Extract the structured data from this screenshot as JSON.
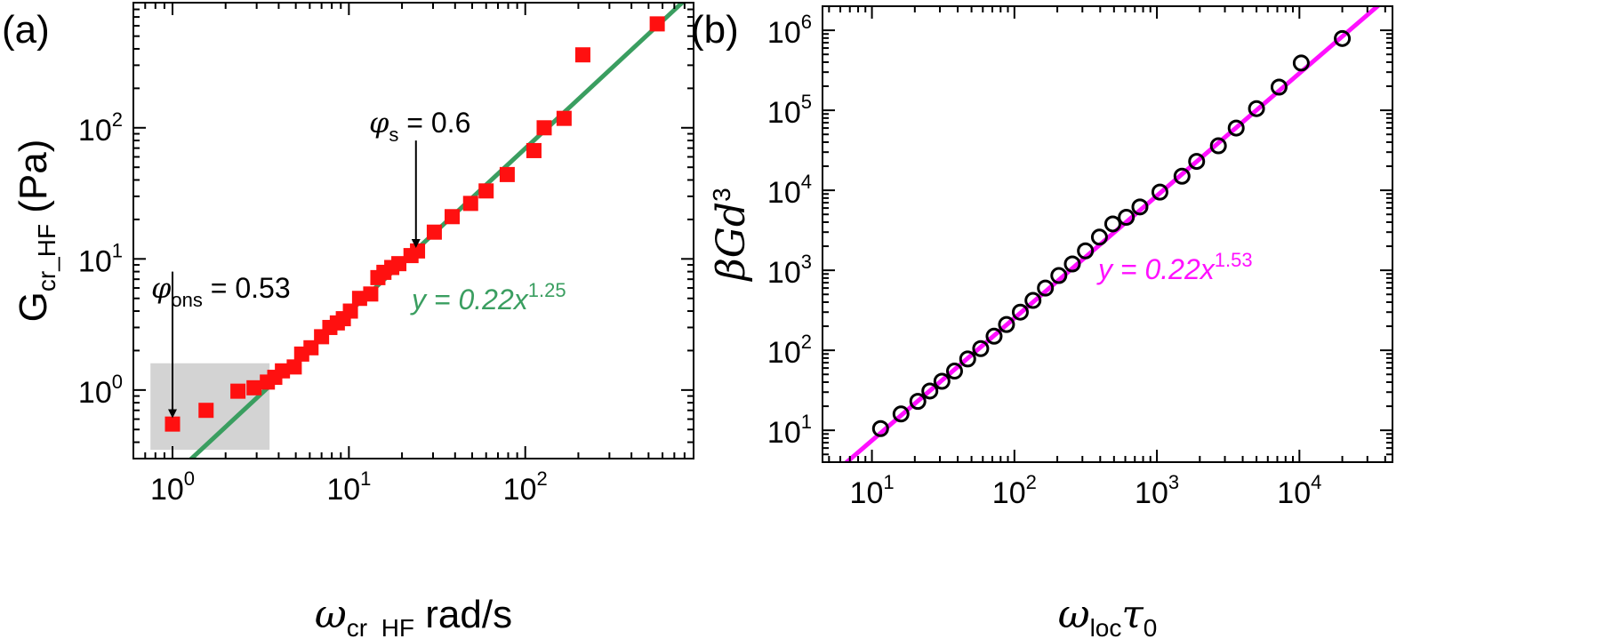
{
  "chart_data": [
    {
      "panel_label": "(a)",
      "type": "scatter",
      "scale": "log-log",
      "xlim": [
        0.6,
        900
      ],
      "ylim": [
        0.3,
        900
      ],
      "x_ticks": [
        {
          "value": 1,
          "base": "10",
          "exp": "0"
        },
        {
          "value": 10,
          "base": "10",
          "exp": "1"
        },
        {
          "value": 100,
          "base": "10",
          "exp": "2"
        }
      ],
      "y_ticks": [
        {
          "value": 1,
          "base": "10",
          "exp": "0"
        },
        {
          "value": 10,
          "base": "10",
          "exp": "1"
        },
        {
          "value": 100,
          "base": "10",
          "exp": "2"
        }
      ],
      "xlabel": {
        "symbol": "ω",
        "sub": "cr_HF",
        "rest": " rad/s"
      },
      "ylabel": {
        "symbol": "G",
        "sub": "cr_HF",
        "rest": " (Pa)"
      },
      "marker": {
        "shape": "square",
        "color": "#ff1010"
      },
      "points": [
        {
          "x": 1.0,
          "y": 0.55
        },
        {
          "x": 1.55,
          "y": 0.7
        },
        {
          "x": 2.35,
          "y": 0.98
        },
        {
          "x": 2.9,
          "y": 1.04
        },
        {
          "x": 3.45,
          "y": 1.15
        },
        {
          "x": 3.8,
          "y": 1.25
        },
        {
          "x": 4.2,
          "y": 1.4
        },
        {
          "x": 4.9,
          "y": 1.5
        },
        {
          "x": 5.4,
          "y": 1.88
        },
        {
          "x": 6.1,
          "y": 2.1
        },
        {
          "x": 7.0,
          "y": 2.55
        },
        {
          "x": 7.8,
          "y": 3.0
        },
        {
          "x": 8.6,
          "y": 3.25
        },
        {
          "x": 9.3,
          "y": 3.5
        },
        {
          "x": 10.2,
          "y": 4.0
        },
        {
          "x": 11.5,
          "y": 5.0
        },
        {
          "x": 13.3,
          "y": 5.4
        },
        {
          "x": 14.6,
          "y": 7.2
        },
        {
          "x": 15.8,
          "y": 7.9
        },
        {
          "x": 17.5,
          "y": 8.6
        },
        {
          "x": 19.2,
          "y": 9.2
        },
        {
          "x": 22.5,
          "y": 10.6
        },
        {
          "x": 24.5,
          "y": 11.5
        },
        {
          "x": 30.5,
          "y": 16.0
        },
        {
          "x": 38.5,
          "y": 21.0
        },
        {
          "x": 49.0,
          "y": 26.5
        },
        {
          "x": 60.0,
          "y": 33.0
        },
        {
          "x": 79.0,
          "y": 44.0
        },
        {
          "x": 112.0,
          "y": 67.0
        },
        {
          "x": 128.0,
          "y": 100.0
        },
        {
          "x": 166.0,
          "y": 118.0
        },
        {
          "x": 212.0,
          "y": 360.0
        },
        {
          "x": 560.0,
          "y": 620.0
        }
      ],
      "fit": {
        "a": 0.22,
        "b": 1.25,
        "color": "#3a9e60",
        "label_prefix": "y = 0.22x",
        "label_exp": "1.25"
      },
      "shaded_region": {
        "x": [
          0.75,
          3.55
        ],
        "y": [
          0.35,
          1.6
        ],
        "color": "#d3d3d3"
      },
      "annotations": [
        {
          "symbol": "φ",
          "sub": "ons",
          "text": " = 0.53",
          "arrow_x": 1.0,
          "arrow_y_from": 8.0,
          "arrow_y_to": 0.63
        },
        {
          "symbol": "φ",
          "sub": "s",
          "text": " = 0.6",
          "arrow_x": 24.0,
          "arrow_y_from": 80.0,
          "arrow_y_to": 12.5
        }
      ]
    },
    {
      "panel_label": "(b)",
      "type": "scatter",
      "scale": "log-log",
      "xlim": [
        4.5,
        45000
      ],
      "ylim": [
        4.0,
        2000000
      ],
      "x_ticks": [
        {
          "value": 10,
          "base": "10",
          "exp": "1"
        },
        {
          "value": 100,
          "base": "10",
          "exp": "2"
        },
        {
          "value": 1000,
          "base": "10",
          "exp": "3"
        },
        {
          "value": 10000,
          "base": "10",
          "exp": "4"
        }
      ],
      "y_ticks": [
        {
          "value": 10,
          "base": "10",
          "exp": "1"
        },
        {
          "value": 100,
          "base": "10",
          "exp": "2"
        },
        {
          "value": 1000,
          "base": "10",
          "exp": "3"
        },
        {
          "value": 10000,
          "base": "10",
          "exp": "4"
        },
        {
          "value": 100000,
          "base": "10",
          "exp": "5"
        },
        {
          "value": 1000000,
          "base": "10",
          "exp": "6"
        }
      ],
      "xlabel": {
        "symbol": "ω",
        "sub": "loc",
        "symbol2": "τ",
        "sub2": "0"
      },
      "ylabel": {
        "symbol": "βGd",
        "sup": "3"
      },
      "marker": {
        "shape": "circle-open",
        "color": "#000000"
      },
      "points": [
        {
          "x": 11.5,
          "y": 10.5
        },
        {
          "x": 16,
          "y": 16
        },
        {
          "x": 21,
          "y": 23
        },
        {
          "x": 25.5,
          "y": 31
        },
        {
          "x": 31,
          "y": 41
        },
        {
          "x": 38,
          "y": 55
        },
        {
          "x": 47,
          "y": 78
        },
        {
          "x": 58,
          "y": 105
        },
        {
          "x": 72,
          "y": 150
        },
        {
          "x": 88,
          "y": 210
        },
        {
          "x": 110,
          "y": 300
        },
        {
          "x": 135,
          "y": 420
        },
        {
          "x": 165,
          "y": 600
        },
        {
          "x": 205,
          "y": 860
        },
        {
          "x": 255,
          "y": 1200
        },
        {
          "x": 315,
          "y": 1750
        },
        {
          "x": 395,
          "y": 2600
        },
        {
          "x": 490,
          "y": 3800
        },
        {
          "x": 610,
          "y": 4600
        },
        {
          "x": 760,
          "y": 6200
        },
        {
          "x": 1050,
          "y": 9500
        },
        {
          "x": 1500,
          "y": 15000
        },
        {
          "x": 1900,
          "y": 23000
        },
        {
          "x": 2700,
          "y": 36000
        },
        {
          "x": 3600,
          "y": 60000
        },
        {
          "x": 5000,
          "y": 105000
        },
        {
          "x": 7200,
          "y": 195000
        },
        {
          "x": 10300,
          "y": 390000
        },
        {
          "x": 20000,
          "y": 790000
        }
      ],
      "fit": {
        "a": 0.22,
        "b": 1.53,
        "color": "#ff10ff",
        "label_prefix": "y = 0.22x",
        "label_exp": "1.53"
      }
    }
  ]
}
